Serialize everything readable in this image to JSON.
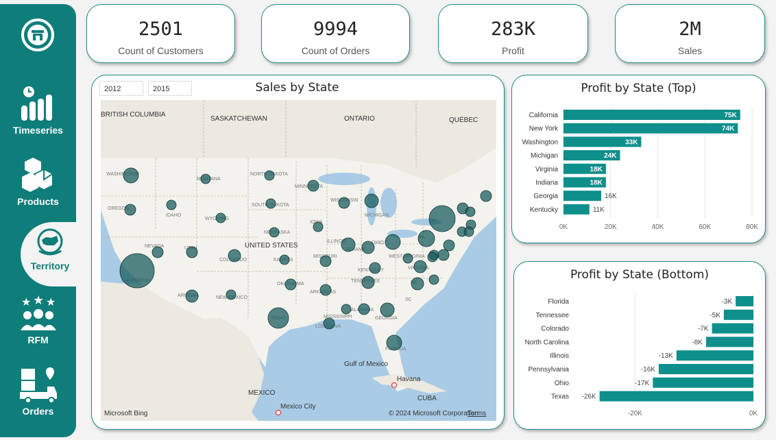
{
  "nav": {
    "items": [
      {
        "label": "Timeseries",
        "icon": "timeseries-icon"
      },
      {
        "label": "Products",
        "icon": "products-icon"
      },
      {
        "label": "Territory",
        "icon": "territory-icon",
        "active": true
      },
      {
        "label": "RFM",
        "icon": "rfm-icon"
      },
      {
        "label": "Orders",
        "icon": "orders-icon"
      }
    ],
    "logo_icon": "store-logo-icon"
  },
  "kpis": [
    {
      "value": "2501",
      "label": "Count of Customers"
    },
    {
      "value": "9994",
      "label": "Count of Orders"
    },
    {
      "value": "283K",
      "label": "Profit"
    },
    {
      "value": "2M",
      "label": "Sales"
    }
  ],
  "map_panel": {
    "title": "Sales by State",
    "slicer_start": "2012",
    "slicer_end": "2015",
    "labels": {
      "country": "UNITED STATES",
      "gulf": "Gulf of Mexico",
      "havana": "Havana",
      "mexico_city": "Mexico City",
      "mexico": "MEXICO",
      "cuba": "CUBA",
      "bc": "BRITISH COLUMBIA",
      "sask": "SASKATCHEWAN",
      "ontario": "ONTARIO",
      "quebec": "QUÉBEC",
      "bing": "Microsoft Bing",
      "copyright": "© 2024 Microsoft Corporation",
      "terms": "Terms"
    },
    "state_labels": [
      "WASHINGTON",
      "OREGON",
      "IDAHO",
      "MONTANA",
      "WYOMING",
      "NEVADA",
      "UTAH",
      "COLORADO",
      "CALIFORNIA",
      "ARIZONA",
      "NEW MEXICO",
      "TEXAS",
      "OKLAHOMA",
      "KANSAS",
      "NEBRASKA",
      "SOUTH DAKOTA",
      "NORTH DAKOTA",
      "MINNESOTA",
      "IOWA",
      "MISSOURI",
      "ARKANSAS",
      "LOUISIANA",
      "MISSISSIPPI",
      "ALABAMA",
      "GEORGIA",
      "FLORIDA",
      "TENNESSEE",
      "KENTUCKY",
      "ILLINOIS",
      "INDIANA",
      "OHIO",
      "MICHIGAN",
      "WISCONSIN",
      "PA",
      "NY",
      "WEST VIRGINIA",
      "VIRGINIA",
      "NC",
      "SC"
    ],
    "bubble_color": "#1b5d60"
  },
  "top_chart": {
    "title": "Profit by State (Top)",
    "bar_color": "#0f8f8b"
  },
  "bottom_chart": {
    "title": "Profit by State (Bottom)",
    "bar_color": "#0f8f8b"
  },
  "chart_data": [
    {
      "type": "bar",
      "title": "Profit by State (Top)",
      "orientation": "horizontal",
      "categories": [
        "California",
        "New York",
        "Washington",
        "Michigan",
        "Virginia",
        "Indiana",
        "Georgia",
        "Kentucky"
      ],
      "values": [
        75000,
        74000,
        33000,
        24000,
        18000,
        18000,
        16000,
        11000
      ],
      "data_labels": [
        "75K",
        "74K",
        "33K",
        "24K",
        "18K",
        "18K",
        "16K",
        "11K"
      ],
      "xlim": [
        0,
        80000
      ],
      "ticks": [
        "0K",
        "20K",
        "40K",
        "60K",
        "80K"
      ],
      "tick_values": [
        0,
        20000,
        40000,
        60000,
        80000
      ],
      "grid": true
    },
    {
      "type": "bar",
      "title": "Profit by State (Bottom)",
      "orientation": "horizontal",
      "categories": [
        "Florida",
        "Tennessee",
        "Colorado",
        "North Carolina",
        "Illinois",
        "Pennsylvania",
        "Ohio",
        "Texas"
      ],
      "values": [
        -3000,
        -5000,
        -7000,
        -8000,
        -13000,
        -16000,
        -17000,
        -26000
      ],
      "data_labels": [
        "-3K",
        "-5K",
        "-7K",
        "-8K",
        "-13K",
        "-16K",
        "-17K",
        "-26K"
      ],
      "xlim": [
        -27000,
        0
      ],
      "ticks": [
        "-20K",
        "0K"
      ],
      "tick_values": [
        -20000,
        0
      ],
      "grid": true
    }
  ]
}
